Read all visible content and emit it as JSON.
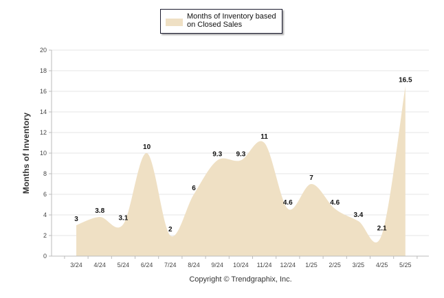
{
  "chart_data": {
    "type": "area",
    "title": "",
    "xlabel": "",
    "ylabel": "Months of Inventory",
    "categories": [
      "3/24",
      "4/24",
      "5/24",
      "6/24",
      "7/24",
      "8/24",
      "9/24",
      "10/24",
      "11/24",
      "12/24",
      "1/25",
      "2/25",
      "3/25",
      "4/25",
      "5/25"
    ],
    "series": [
      {
        "name": "Months of Inventory based on Closed Sales",
        "values": [
          3,
          3.8,
          3.1,
          10,
          2,
          6,
          9.3,
          9.3,
          11,
          4.6,
          7,
          4.6,
          3.4,
          2.1,
          16.5
        ],
        "labels": [
          "3",
          "3.8",
          "3.1",
          "10",
          "2",
          "6",
          "9.3",
          "9.3",
          "11",
          "4.6",
          "7",
          "4.6",
          "3.4",
          "2.1",
          "16.5"
        ]
      }
    ],
    "ylim": [
      0,
      20
    ],
    "yticks": [
      0,
      2,
      4,
      6,
      8,
      10,
      12,
      14,
      16,
      18,
      20
    ],
    "grid": true,
    "legend_position": "top-center",
    "fill_color": "#efe0c4",
    "grid_color": "#e4e4e4",
    "axis_color": "#bbbbbb"
  },
  "legend": {
    "label_line1": "Months of Inventory based",
    "label_line2": "on Closed Sales"
  },
  "footer": {
    "copyright": "Copyright © Trendgraphix, Inc."
  }
}
